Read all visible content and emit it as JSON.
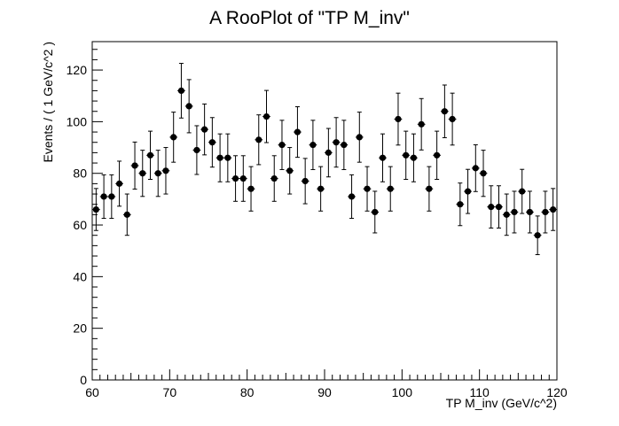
{
  "chart_data": {
    "type": "scatter",
    "title": "A RooPlot of \"TP M_inv\"",
    "xlabel": "TP M_inv (GeV/c^2)",
    "ylabel": "Events / ( 1 GeV/c^2 )",
    "xlim": [
      60,
      120
    ],
    "ylim": [
      0,
      131
    ],
    "x_ticks": [
      60,
      70,
      80,
      90,
      100,
      110,
      120
    ],
    "x_tick_labels": [
      "60",
      "70",
      "80",
      "90",
      "100",
      "110",
      "120"
    ],
    "y_ticks": [
      0,
      20,
      40,
      60,
      80,
      100,
      120
    ],
    "y_tick_labels": [
      "0",
      "20",
      "40",
      "60",
      "80",
      "100",
      "120"
    ],
    "grid": false,
    "legend": "none",
    "marker_color": "#000000",
    "series": [
      {
        "x": [
          60.5,
          61.5,
          62.5,
          63.5,
          64.5,
          65.5,
          66.5,
          67.5,
          68.5,
          69.5,
          70.5,
          71.5,
          72.5,
          73.5,
          74.5,
          75.5,
          76.5,
          77.5,
          78.5,
          79.5,
          80.5,
          81.5,
          82.5,
          83.5,
          84.5,
          85.5,
          86.5,
          87.5,
          88.5,
          89.5,
          90.5,
          91.5,
          92.5,
          93.5,
          94.5,
          95.5,
          96.5,
          97.5,
          98.5,
          99.5,
          100.5,
          101.5,
          102.5,
          103.5,
          104.5,
          105.5,
          106.5,
          107.5,
          108.5,
          109.5,
          110.5,
          111.5,
          112.5,
          113.5,
          114.5,
          115.5,
          116.5,
          117.5,
          118.5,
          119.5
        ],
        "y": [
          66,
          71,
          71,
          76,
          64,
          83,
          80,
          87,
          80,
          81,
          94,
          112,
          106,
          89,
          97,
          92,
          86,
          86,
          78,
          78,
          74,
          93,
          102,
          78,
          91,
          81,
          96,
          77,
          91,
          74,
          88,
          92,
          91,
          71,
          94,
          74,
          65,
          86,
          74,
          101,
          87,
          86,
          99,
          74,
          87,
          104,
          101,
          68,
          73,
          82,
          80,
          67,
          67,
          64,
          65,
          73,
          65,
          56,
          65,
          66
        ]
      }
    ]
  }
}
